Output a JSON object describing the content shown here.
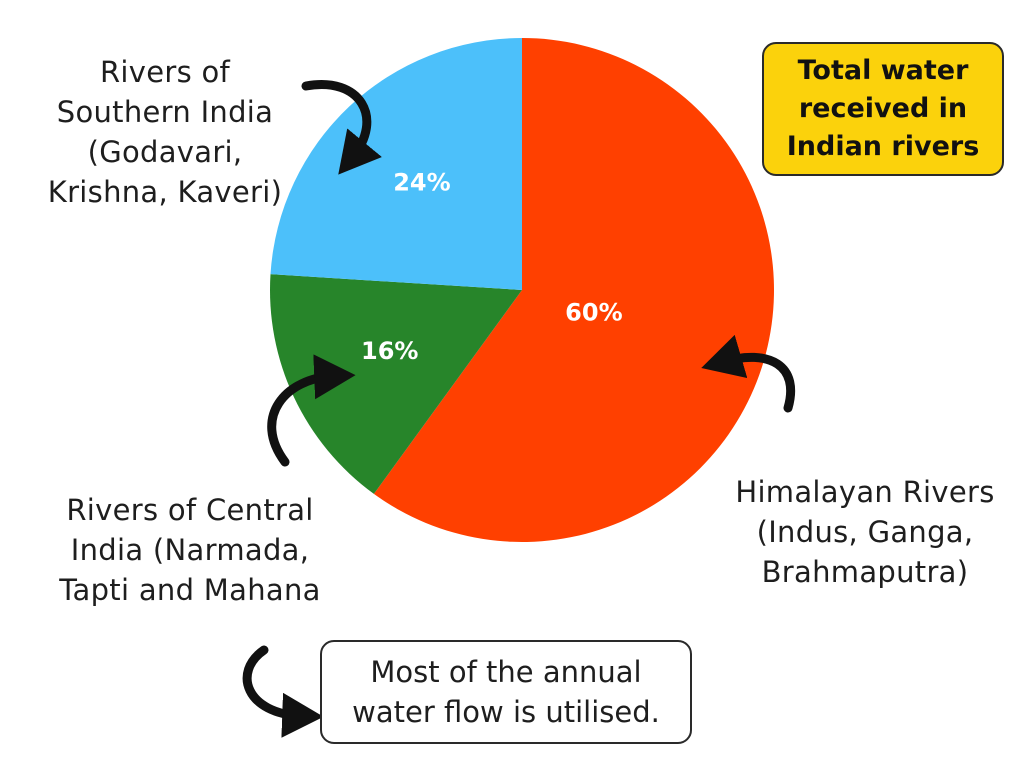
{
  "chart_data": {
    "type": "pie",
    "title": "Total water received in Indian rivers",
    "series": [
      {
        "name": "Himalayan Rivers",
        "value": 60,
        "label": "60%",
        "color": "#ff4000"
      },
      {
        "name": "Rivers of Central India",
        "value": 16,
        "label": "16%",
        "color": "#27852a"
      },
      {
        "name": "Rivers of Southern India",
        "value": 24,
        "label": "24%",
        "color": "#4cc0fa"
      }
    ]
  },
  "title_box": {
    "lines": [
      "Total water",
      "received in",
      "Indian rivers"
    ],
    "background_color": "#fbd20c"
  },
  "annotations": {
    "south": [
      "Rivers of",
      "Southern India",
      "(Godavari,",
      "Krishna, Kaveri)"
    ],
    "central": [
      "Rivers of Central",
      "India (Narmada,",
      "Tapti and Mahana"
    ],
    "himalayan": [
      "Himalayan Rivers",
      "(Indus, Ganga,",
      "Brahmaputra)"
    ]
  },
  "note": {
    "lines": [
      "Most of the annual",
      "water flow is utilised."
    ]
  },
  "icons": [
    "curved-arrow-icon"
  ]
}
